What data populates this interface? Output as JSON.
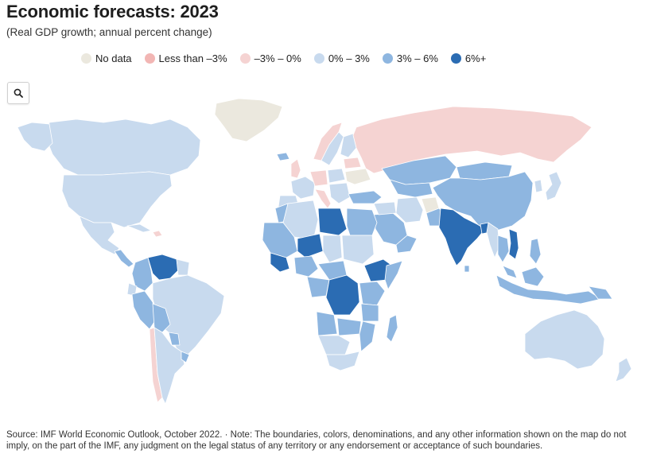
{
  "title": "Economic forecasts: 2023",
  "subtitle": "(Real GDP growth; annual percent change)",
  "legend": [
    {
      "key": "nodata",
      "label": "No data",
      "color": "#ebe8de"
    },
    {
      "key": "lt_m3",
      "label": "Less than –3%",
      "color": "#f2b6b4"
    },
    {
      "key": "m3_0",
      "label": "–3% – 0%",
      "color": "#f5d3d2"
    },
    {
      "key": "0_3",
      "label": "0% – 3%",
      "color": "#c8daee"
    },
    {
      "key": "3_6",
      "label": "3% – 6%",
      "color": "#8eb6e0"
    },
    {
      "key": "6plus",
      "label": "6%+",
      "color": "#2b6cb3"
    }
  ],
  "zoom": {
    "icon": "search-icon"
  },
  "source_note": "Source: IMF World Economic Outlook, October 2022. · Note: The boundaries, colors, denominations, and any other information shown on the map do not imply, on the part of the IMF, any judgment on the legal status of any territory or any endorsement or acceptance of such boundaries."
}
